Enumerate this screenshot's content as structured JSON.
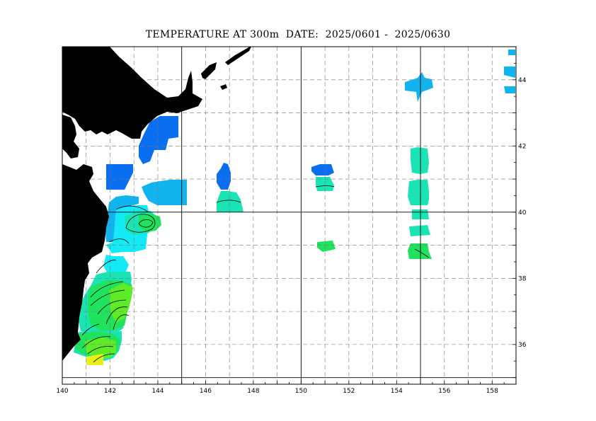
{
  "title": "TEMPERATURE AT 300m  DATE:  2025/0601 -  2025/0630",
  "map": {
    "lon_range": [
      140,
      159
    ],
    "lat_range": [
      34.8,
      45.0
    ],
    "lon_ticks": [
      "140",
      "142",
      "144",
      "146",
      "148",
      "150",
      "152",
      "154",
      "156",
      "158"
    ],
    "lat_ticks": [
      "36",
      "38",
      "40",
      "42",
      "44"
    ],
    "grid": "dashed every 1 degree, solid every 5 degrees",
    "land_color": "#000000",
    "palette": {
      "blue": "#0a6ef0",
      "sky": "#12b4f0",
      "cyan": "#14eaf5",
      "teal": "#1be4b4",
      "green": "#1fe25f",
      "lime": "#5fec28",
      "yellow": "#e8f018"
    }
  }
}
